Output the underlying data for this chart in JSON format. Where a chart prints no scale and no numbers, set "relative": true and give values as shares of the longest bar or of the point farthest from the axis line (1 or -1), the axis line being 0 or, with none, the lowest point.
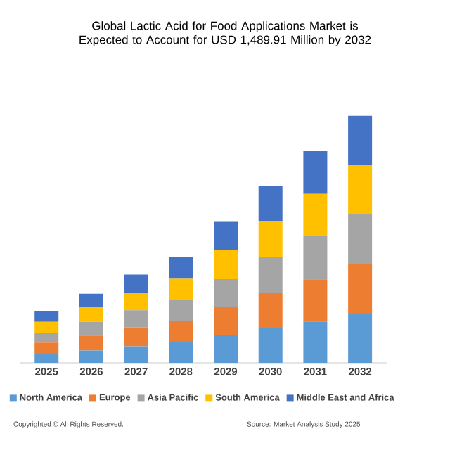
{
  "chart_data": {
    "type": "bar",
    "title": "Global Lactic Acid for Food Applications Market is Expected to Account for USD 1,489.91 Million by 2032",
    "categories": [
      "2025",
      "2026",
      "2027",
      "2028",
      "2029",
      "2030",
      "2031",
      "2032"
    ],
    "relative": true,
    "stacked": true,
    "legend": "bottom",
    "series": [
      {
        "name": "North America",
        "color": "#5b9bd5",
        "values": [
          0.036,
          0.05,
          0.067,
          0.085,
          0.111,
          0.141,
          0.167,
          0.198
        ]
      },
      {
        "name": "Europe",
        "color": "#ed7d31",
        "values": [
          0.046,
          0.06,
          0.077,
          0.083,
          0.117,
          0.141,
          0.171,
          0.201
        ]
      },
      {
        "name": "Asia Pacific",
        "color": "#a5a5a5",
        "values": [
          0.038,
          0.056,
          0.069,
          0.085,
          0.111,
          0.145,
          0.175,
          0.202
        ]
      },
      {
        "name": "South America",
        "color": "#ffc000",
        "values": [
          0.046,
          0.06,
          0.071,
          0.087,
          0.117,
          0.145,
          0.171,
          0.201
        ]
      },
      {
        "name": "Middle East and Africa",
        "color": "#4472c4",
        "values": [
          0.044,
          0.054,
          0.073,
          0.089,
          0.115,
          0.143,
          0.173,
          0.198
        ]
      }
    ],
    "annotations": [
      "Copyrighted © All Rights Reserved.",
      "Source: Market Analysis Study 2025"
    ]
  }
}
